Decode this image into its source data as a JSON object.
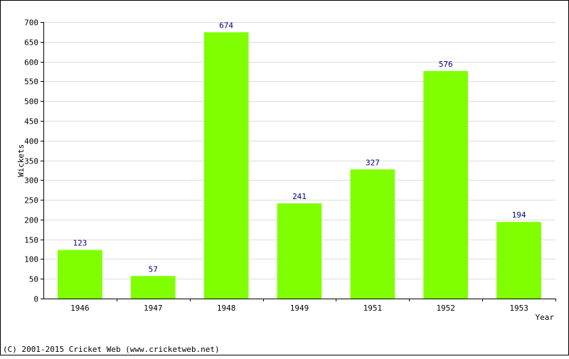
{
  "chart_data": {
    "type": "bar",
    "categories": [
      "1946",
      "1947",
      "1948",
      "1949",
      "1951",
      "1952",
      "1953"
    ],
    "values": [
      123,
      57,
      674,
      241,
      327,
      576,
      194
    ],
    "title": "",
    "xlabel": "Year",
    "ylabel": "Wickets",
    "ylim": [
      0,
      700
    ],
    "yticks": [
      0,
      50,
      100,
      150,
      200,
      250,
      300,
      350,
      400,
      450,
      500,
      550,
      600,
      650,
      700
    ],
    "grid": true,
    "colors": {
      "bar": "#80ff00",
      "data_label": "#000080",
      "grid": "#dcdcdc"
    }
  },
  "footer": {
    "copyright": "(C) 2001-2015 Cricket Web (www.cricketweb.net)"
  }
}
